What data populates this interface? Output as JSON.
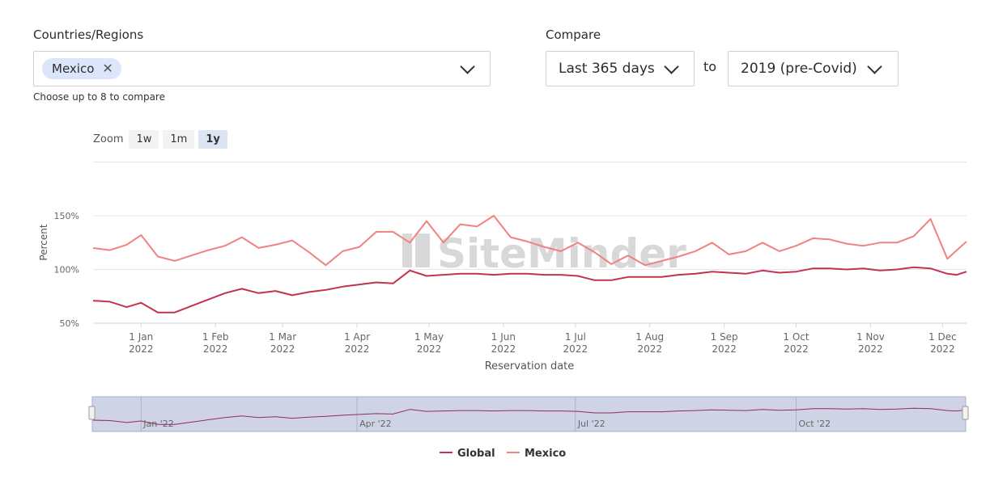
{
  "filters": {
    "countries_label": "Countries/Regions",
    "selected_chip": "Mexico",
    "hint": "Choose up to 8 to compare",
    "compare_label": "Compare",
    "period_value": "Last 365 days",
    "to_label": "to",
    "baseline_value": "2019 (pre-Covid)"
  },
  "zoom": {
    "label": "Zoom",
    "buttons": [
      "1w",
      "1m",
      "1y"
    ],
    "active": "1y"
  },
  "watermark": "SiteMinder",
  "navigator": {
    "labels": [
      "Jan '22",
      "Apr '22",
      "Jul '22",
      "Oct '22"
    ]
  },
  "chart_data": {
    "type": "line",
    "xlabel": "Reservation date",
    "ylabel": "Percent",
    "y_ticks": [
      "50%",
      "100%",
      "150%"
    ],
    "ylim": [
      50,
      200
    ],
    "x_ticks": [
      {
        "line1": "1 Jan",
        "line2": "2022"
      },
      {
        "line1": "1 Feb",
        "line2": "2022"
      },
      {
        "line1": "1 Mar",
        "line2": "2022"
      },
      {
        "line1": "1 Apr",
        "line2": "2022"
      },
      {
        "line1": "1 May",
        "line2": "2022"
      },
      {
        "line1": "1 Jun",
        "line2": "2022"
      },
      {
        "line1": "1 Jul",
        "line2": "2022"
      },
      {
        "line1": "1 Aug",
        "line2": "2022"
      },
      {
        "line1": "1 Sep",
        "line2": "2022"
      },
      {
        "line1": "1 Oct",
        "line2": "2022"
      },
      {
        "line1": "1 Nov",
        "line2": "2022"
      },
      {
        "line1": "1 Dec",
        "line2": "2022"
      }
    ],
    "x_dates": [
      "2021-12-12",
      "2021-12-19",
      "2021-12-26",
      "2022-01-01",
      "2022-01-08",
      "2022-01-15",
      "2022-01-22",
      "2022-01-29",
      "2022-02-05",
      "2022-02-12",
      "2022-02-19",
      "2022-02-26",
      "2022-03-05",
      "2022-03-12",
      "2022-03-19",
      "2022-03-26",
      "2022-04-02",
      "2022-04-09",
      "2022-04-16",
      "2022-04-23",
      "2022-04-30",
      "2022-05-07",
      "2022-05-14",
      "2022-05-21",
      "2022-05-28",
      "2022-06-04",
      "2022-06-11",
      "2022-06-18",
      "2022-06-25",
      "2022-07-02",
      "2022-07-09",
      "2022-07-16",
      "2022-07-23",
      "2022-07-30",
      "2022-08-06",
      "2022-08-13",
      "2022-08-20",
      "2022-08-27",
      "2022-09-03",
      "2022-09-10",
      "2022-09-17",
      "2022-09-24",
      "2022-10-01",
      "2022-10-08",
      "2022-10-15",
      "2022-10-22",
      "2022-10-29",
      "2022-11-05",
      "2022-11-12",
      "2022-11-19",
      "2022-11-26",
      "2022-12-03",
      "2022-12-07",
      "2022-12-11"
    ],
    "series": [
      {
        "name": "Global",
        "color": "#c2334f",
        "values": [
          71,
          70,
          65,
          69,
          60,
          60,
          66,
          72,
          78,
          82,
          78,
          80,
          76,
          79,
          81,
          84,
          86,
          88,
          87,
          99,
          94,
          95,
          96,
          96,
          95,
          96,
          96,
          95,
          95,
          94,
          90,
          90,
          93,
          93,
          93,
          95,
          96,
          98,
          97,
          96,
          99,
          97,
          98,
          101,
          101,
          100,
          101,
          99,
          100,
          102,
          101,
          96,
          95,
          98
        ]
      },
      {
        "name": "Mexico",
        "color": "#f08282",
        "values": [
          120,
          118,
          123,
          132,
          112,
          108,
          113,
          118,
          122,
          130,
          120,
          123,
          127,
          116,
          104,
          117,
          121,
          135,
          135,
          125,
          145,
          125,
          142,
          140,
          150,
          130,
          126,
          121,
          117,
          125,
          116,
          105,
          113,
          104,
          108,
          112,
          117,
          125,
          114,
          117,
          125,
          117,
          122,
          129,
          128,
          124,
          122,
          125,
          125,
          131,
          147,
          110,
          118,
          126
        ]
      }
    ]
  }
}
